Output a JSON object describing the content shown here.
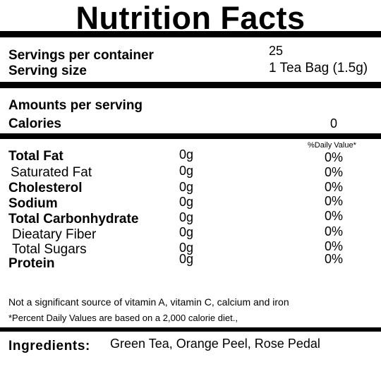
{
  "title": "Nutrition Facts",
  "servings": {
    "per_container_label": "Servings per container",
    "per_container_value": "25",
    "size_label": "Serving size",
    "size_value": "1 Tea Bag (1.5g)"
  },
  "amounts": {
    "heading": "Amounts per serving",
    "calories_label": "Calories",
    "calories_value": "0"
  },
  "daily_value_header": "%Daily Value*",
  "nutrients": [
    {
      "name": "Total Fat",
      "amount": "0g",
      "dv": "0%"
    },
    {
      "name": "Saturated Fat",
      "amount": "0g",
      "dv": "0%"
    },
    {
      "name": "Cholesterol",
      "amount": "0g",
      "dv": "0%"
    },
    {
      "name": "Sodium",
      "amount": "0g",
      "dv": "0%"
    },
    {
      "name": "Total Carbonhydrate",
      "amount": "0g",
      "dv": "0%"
    },
    {
      "name": "Dieatary Fiber",
      "amount": "0g",
      "dv": "0%"
    },
    {
      "name": "Total Sugars",
      "amount": "0g",
      "dv": "0%"
    },
    {
      "name": "Protein",
      "amount": "0g",
      "dv": "0%"
    }
  ],
  "footnotes": {
    "vitamins": "Not a significant source of vitamin A, vitamin C, calcium and iron",
    "daily_values": "*Percent Daily Values are based on a 2,000 calorie diet.,"
  },
  "ingredients": {
    "label": "Ingredients:",
    "value": "Green Tea, Orange Peel, Rose Pedal"
  }
}
